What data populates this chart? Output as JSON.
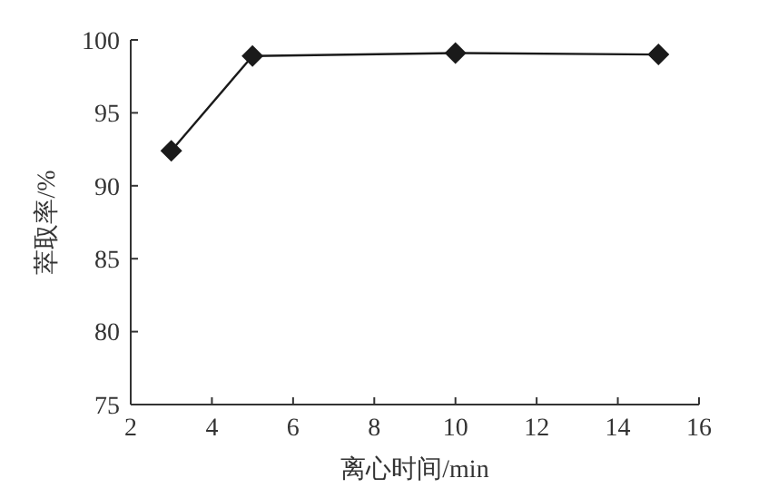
{
  "chart_data": {
    "type": "line",
    "xlabel": "离心时间/min",
    "ylabel": "萃取率/%",
    "x": [
      3,
      5,
      10,
      15
    ],
    "series": [
      {
        "color": "#1a1a1a",
        "values": [
          92.4,
          98.9,
          99.1,
          99.0
        ]
      }
    ],
    "xlim": [
      2,
      16
    ],
    "xticks": [
      2,
      4,
      6,
      8,
      10,
      12,
      14,
      16
    ],
    "ylim": [
      75,
      100
    ],
    "yticks": [
      75,
      80,
      85,
      90,
      95,
      100
    ],
    "marker": "diamond",
    "line_style": "solid"
  }
}
